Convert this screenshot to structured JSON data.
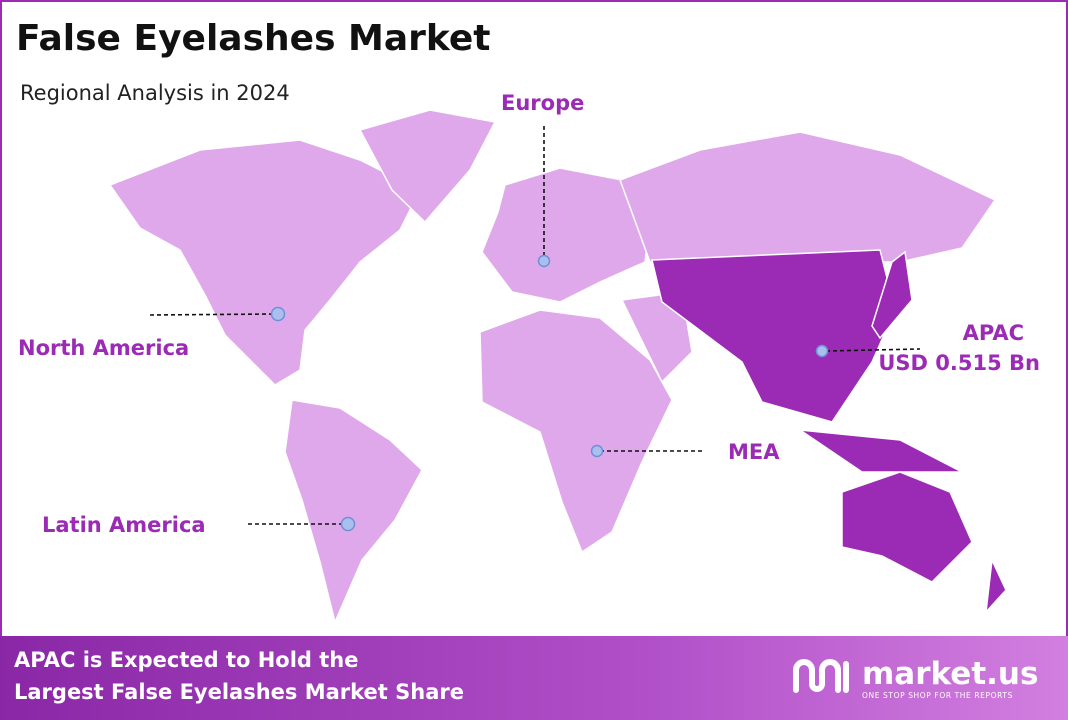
{
  "header": {
    "title": "False Eyelashes Market",
    "subtitle": "Regional Analysis in 2024"
  },
  "regions": [
    {
      "label": "Europe"
    },
    {
      "label": "North America"
    },
    {
      "label": "APAC",
      "value": "USD 0.515 Bn"
    },
    {
      "label": "MEA"
    },
    {
      "label": "Latin America"
    }
  ],
  "footer": {
    "lines": [
      "APAC is Expected to Hold the",
      "Largest False Eyelashes Market Share"
    ]
  },
  "logo": {
    "name": "market.us",
    "tagline": "ONE STOP SHOP FOR THE REPORTS"
  }
}
